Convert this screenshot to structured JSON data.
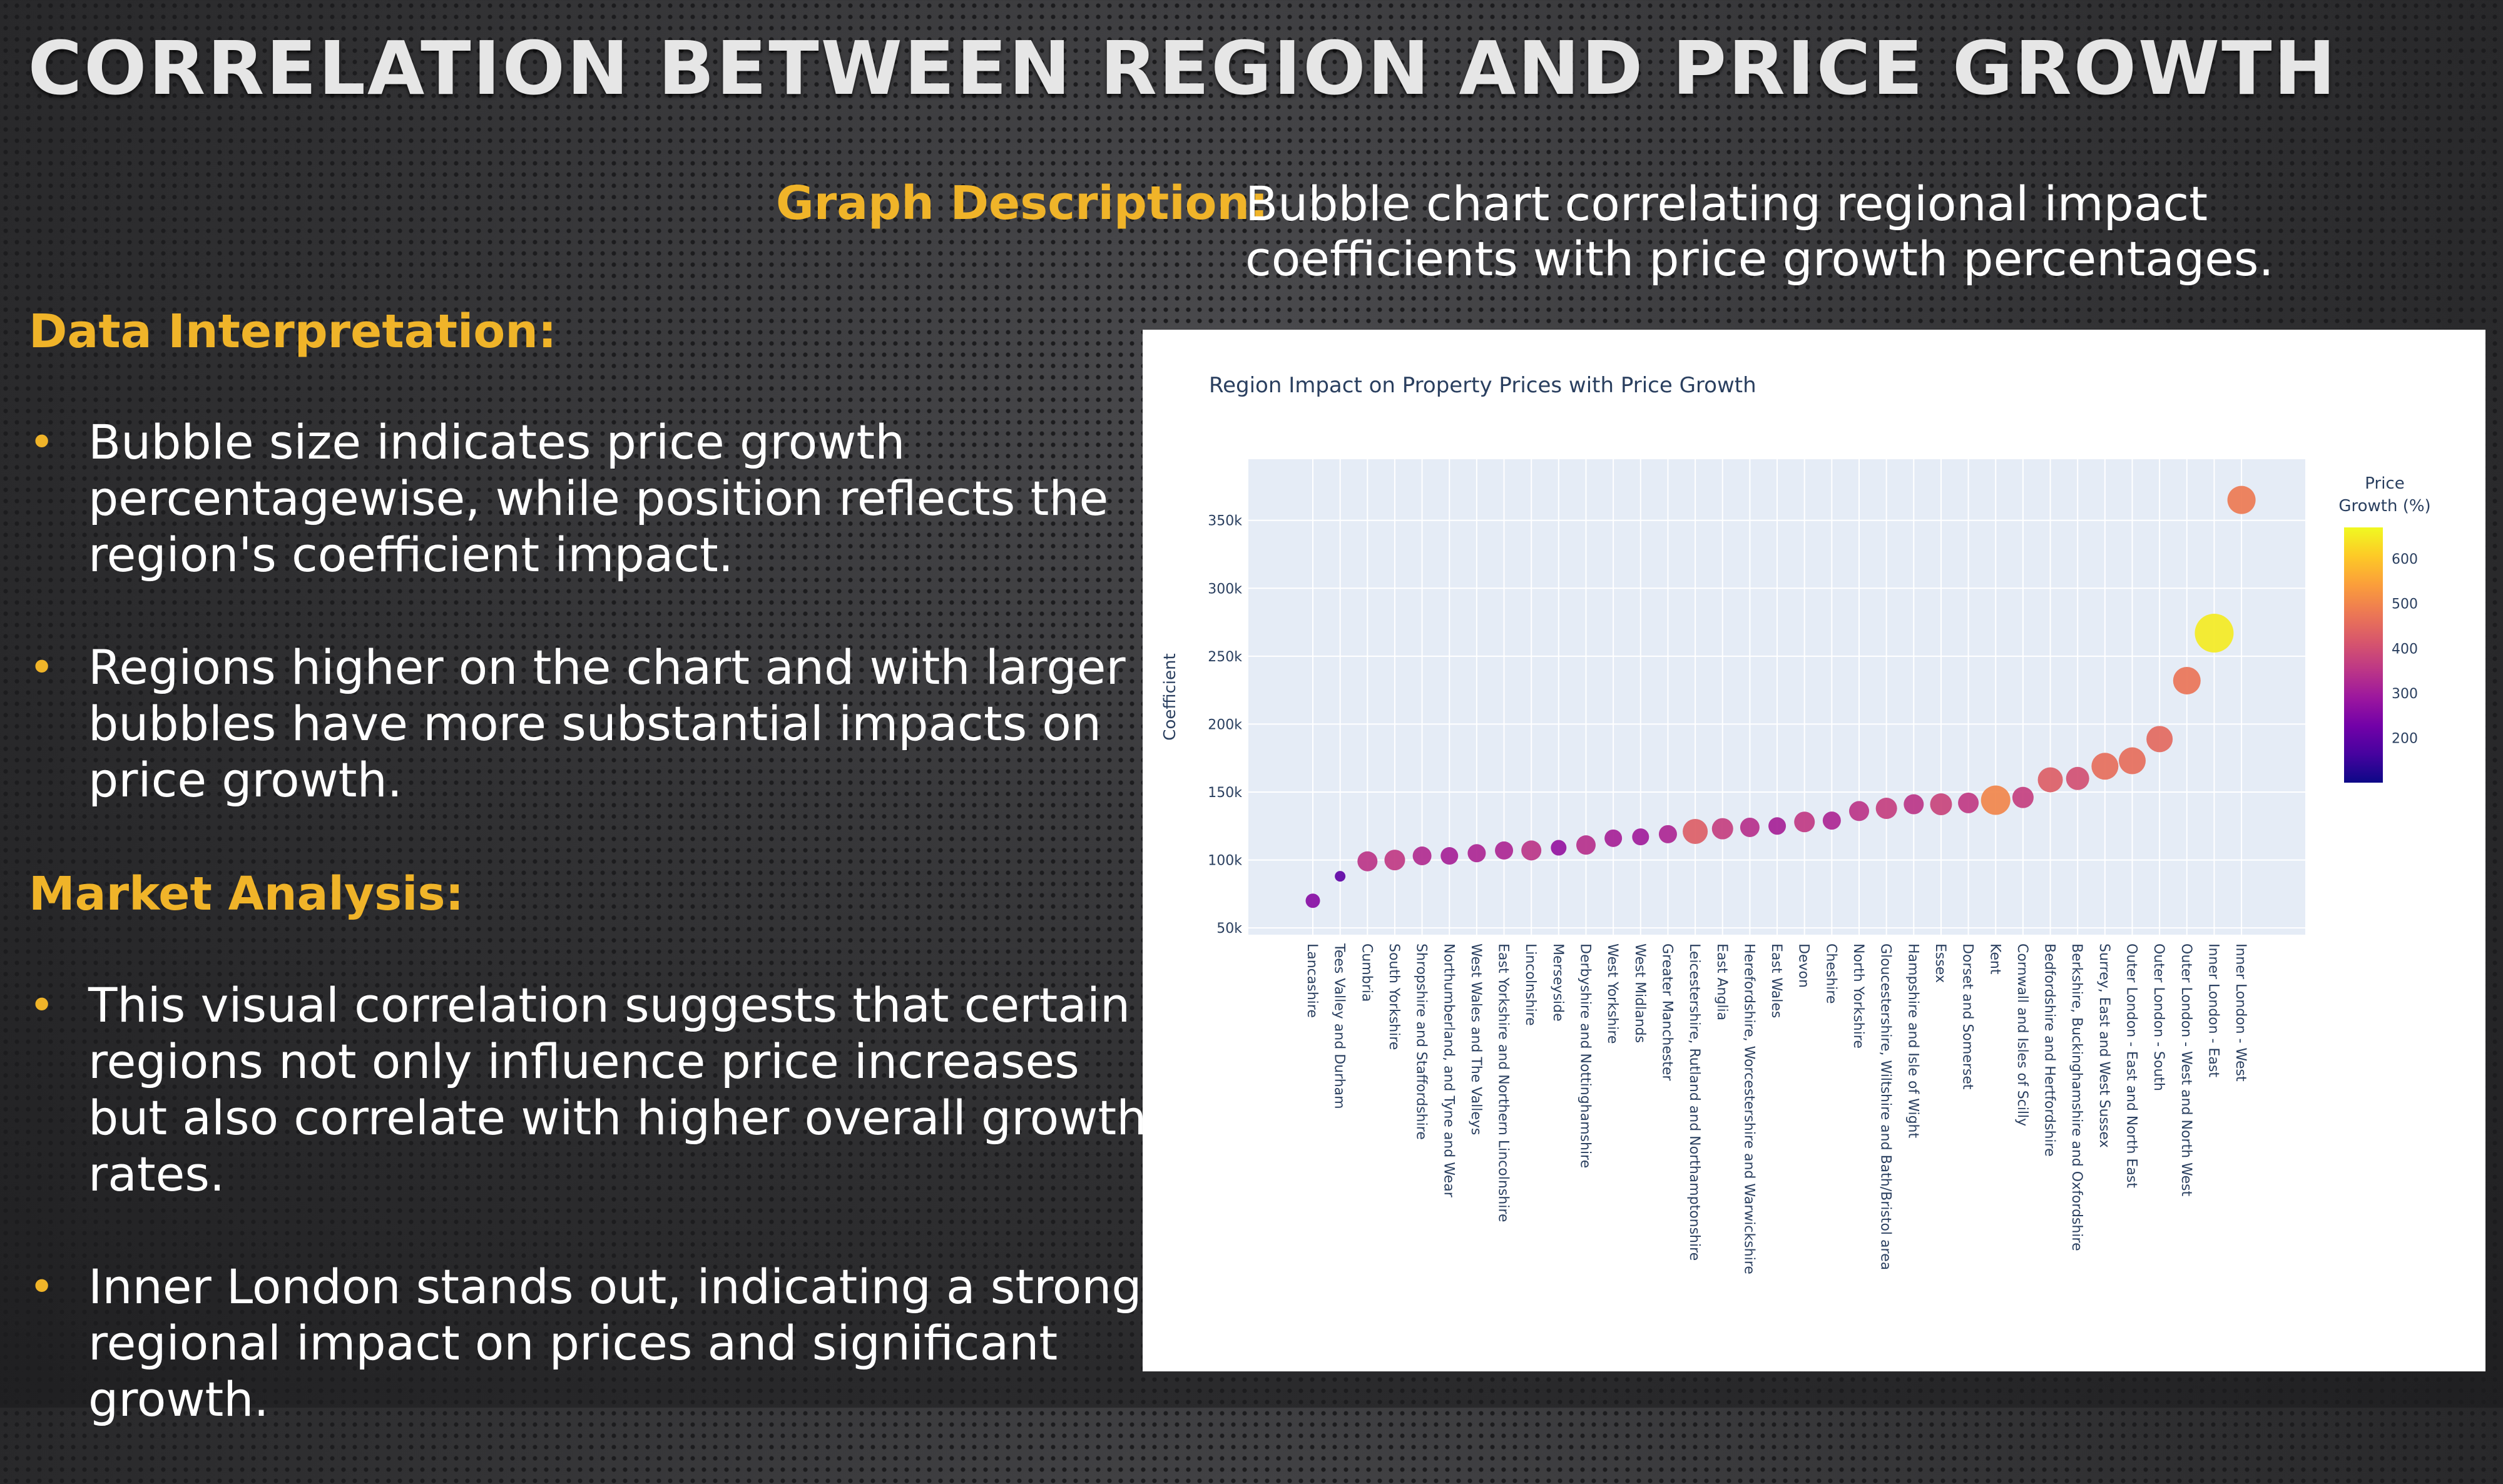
{
  "slide": {
    "title": "CORRELATION BETWEEN REGION AND PRICE GROWTH",
    "graph_description_label": "Graph Description:",
    "graph_description_text": "Bubble chart correlating regional impact coefficients with price growth percentages.",
    "data_interpretation_heading": "Data Interpretation:",
    "data_interpretation_bullets": [
      "Bubble size indicates price growth percentagewise, while position reflects the region's coefficient impact.",
      "Regions higher on the chart and with larger bubbles have more substantial impacts on price growth."
    ],
    "market_analysis_heading": "Market Analysis:",
    "market_analysis_bullets": [
      "This visual correlation suggests that certain regions not only influence price increases but also correlate with higher overall growth rates.",
      "Inner London stands out, indicating a strong regional impact on prices and significant growth."
    ],
    "bullet_symbol": "•"
  },
  "colors": {
    "accent": "#f0b429",
    "plot_bg": "#e5ecf6",
    "colorscale": [
      "#0d0887",
      "#46039f",
      "#7201a8",
      "#9c179e",
      "#bd3786",
      "#d8576b",
      "#ed7953",
      "#fb9f3a",
      "#fdca26",
      "#f0f921"
    ]
  },
  "chart_data": {
    "type": "scatter",
    "title": "Region Impact on Property Prices with Price Growth",
    "xlabel": "",
    "ylabel": "Coefficient",
    "ylim": [
      45000,
      395000
    ],
    "yticks": [
      50000,
      100000,
      150000,
      200000,
      250000,
      300000,
      350000
    ],
    "ytick_labels": [
      "50k",
      "100k",
      "150k",
      "200k",
      "250k",
      "300k",
      "350k"
    ],
    "colorbar": {
      "title": [
        "Price",
        "Growth (%)"
      ],
      "range": [
        100,
        670
      ],
      "ticks": [
        200,
        300,
        400,
        500,
        600
      ]
    },
    "categories": [
      "Lancashire",
      "Tees Valley and Durham",
      "Cumbria",
      "South Yorkshire",
      "Shropshire and Staffordshire",
      "Northumberland, and Tyne and Wear",
      "West Wales and The Valleys",
      "East Yorkshire and Northern Lincolnshire",
      "Lincolnshire",
      "Merseyside",
      "Derbyshire and Nottinghamshire",
      "West Yorkshire",
      "West Midlands",
      "Greater Manchester",
      "Leicestershire, Rutland and Northamptonshire",
      "East Anglia",
      "Herefordshire, Worcestershire and Warwickshire",
      "East Wales",
      "Devon",
      "Cheshire",
      "North Yorkshire",
      "Gloucestershire, Wiltshire and Bath/Bristol area",
      "Hampshire and Isle of Wight",
      "Essex",
      "Dorset and Somerset",
      "Kent",
      "Cornwall and Isles of Scilly",
      "Bedfordshire and Hertfordshire",
      "Berkshire, Buckinghamshire and Oxfordshire",
      "Surrey, East and West Sussex",
      "Outer London - East and North East",
      "Outer London - South",
      "Outer London - West and North West",
      "Inner London - East",
      "Inner London - West"
    ],
    "series": [
      {
        "name": "Coefficient",
        "values": [
          70000,
          88000,
          99000,
          100000,
          103000,
          103000,
          105000,
          107000,
          107000,
          109000,
          111000,
          116000,
          117000,
          119000,
          121000,
          123000,
          124000,
          125000,
          128000,
          129000,
          136000,
          138000,
          141000,
          141000,
          142000,
          144000,
          146000,
          159000,
          160000,
          169000,
          173000,
          189000,
          232000,
          267000,
          365000
        ],
        "growth_pct": [
          260,
          200,
          350,
          360,
          330,
          310,
          320,
          320,
          350,
          280,
          340,
          310,
          300,
          320,
          430,
          370,
          340,
          310,
          360,
          320,
          350,
          370,
          350,
          380,
          360,
          500,
          370,
          430,
          400,
          460,
          460,
          450,
          470,
          650,
          480
        ]
      }
    ]
  }
}
